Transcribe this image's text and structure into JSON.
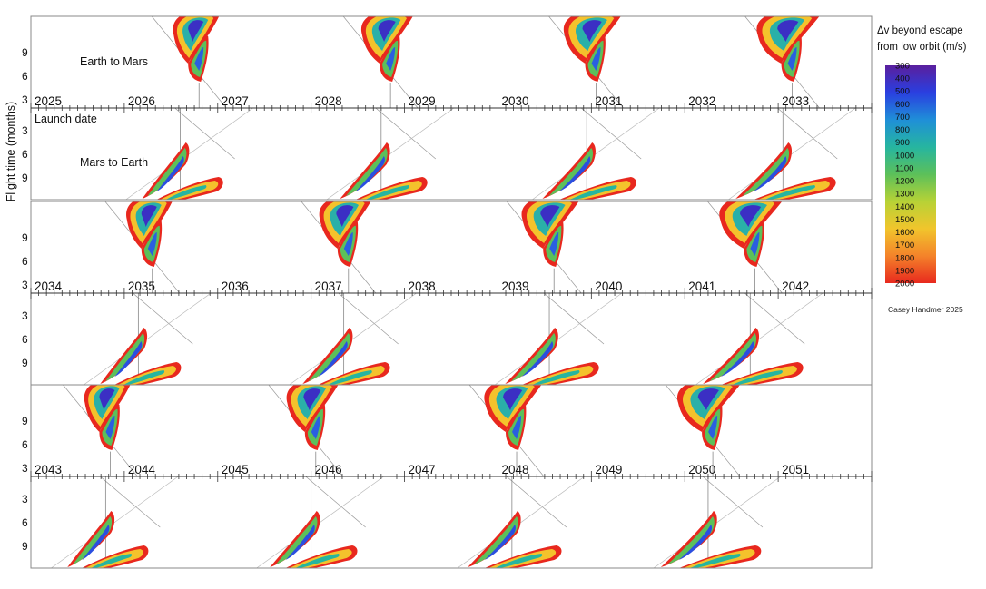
{
  "chart_data": {
    "type": "heatmap",
    "title": "",
    "ylabel": "Flight time (months)",
    "colorbar": {
      "title_line1": "Δv beyond escape",
      "title_line2": "from low orbit (m/s)",
      "ticks": [
        "300",
        "400",
        "500",
        "600",
        "700",
        "800",
        "900",
        "1000",
        "1100",
        "1200",
        "1300",
        "1400",
        "1500",
        "1600",
        "1700",
        "1800",
        "1900",
        "2000"
      ],
      "range": [
        300,
        2000
      ],
      "colors": [
        "#5a1f9e",
        "#2a3fe0",
        "#1f8fd8",
        "#26b5a0",
        "#5cc05a",
        "#b7d236",
        "#f1c52c",
        "#f4832a",
        "#e8281e"
      ]
    },
    "credit": "Casey Handmer 2025",
    "annotations": {
      "earth_to_mars": "Earth to Mars",
      "mars_to_earth": "Mars to Earth",
      "launch_date": "Launch date"
    },
    "rows": [
      {
        "years": [
          "2025",
          "2026",
          "2027",
          "2028",
          "2029",
          "2030",
          "2031",
          "2032",
          "2033"
        ],
        "earth_to_mars_y_ticks": [
          "9",
          "6",
          "3"
        ],
        "mars_to_earth_y_ticks": [
          "3",
          "6",
          "9"
        ],
        "earth_to_mars_window_years": [
          2026.8,
          2028.85,
          2031.05,
          2033.15
        ],
        "mars_to_earth_window_years": [
          2026.6,
          2028.75,
          2030.95,
          2033.05
        ]
      },
      {
        "years": [
          "2034",
          "2035",
          "2036",
          "2037",
          "2038",
          "2039",
          "2040",
          "2041",
          "2042"
        ],
        "earth_to_mars_y_ticks": [
          "9",
          "6",
          "3"
        ],
        "mars_to_earth_y_ticks": [
          "3",
          "6",
          "9"
        ],
        "earth_to_mars_window_years": [
          2035.3,
          2037.4,
          2039.6,
          2041.75
        ],
        "mars_to_earth_window_years": [
          2035.15,
          2037.35,
          2039.55,
          2041.7
        ]
      },
      {
        "years": [
          "2043",
          "2044",
          "2045",
          "2046",
          "2047",
          "2048",
          "2049",
          "2050",
          "2051"
        ],
        "earth_to_mars_y_ticks": [
          "9",
          "6",
          "3"
        ],
        "mars_to_earth_y_ticks": [
          "3",
          "6",
          "9"
        ],
        "earth_to_mars_window_years": [
          2043.85,
          2046.05,
          2048.2,
          2050.3
        ],
        "mars_to_earth_window_years": [
          2043.8,
          2046.0,
          2048.15,
          2050.25
        ]
      }
    ]
  }
}
